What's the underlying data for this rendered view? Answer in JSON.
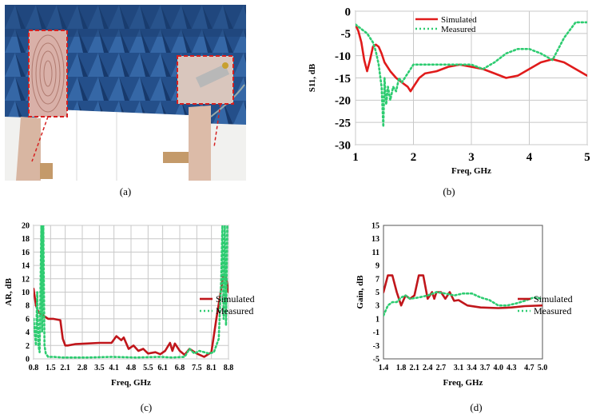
{
  "captions": {
    "a": "(a)",
    "b": "(b)",
    "c": "(c)",
    "d": "(d)"
  },
  "photo": {
    "description_colors": {
      "absorber": "#1f4e8c",
      "foam": "#f2f2f2",
      "board": "#d9b8a6",
      "inset_border": "#d62020"
    }
  },
  "chart_data": [
    {
      "id": "b",
      "type": "line",
      "xlabel": "Freq, GHz",
      "ylabel": "S11, dB",
      "xlim": [
        1,
        5
      ],
      "ylim": [
        -30,
        0
      ],
      "xticks": [
        "1",
        "2",
        "3",
        "4",
        "5"
      ],
      "yticks": [
        "0",
        "-5",
        "-10",
        "-15",
        "-20",
        "-25",
        "-30"
      ],
      "grid": true,
      "legend": "top-center",
      "series": [
        {
          "name": "Simulated",
          "color": "#e01b1b",
          "style": "solid",
          "x": [
            1.0,
            1.05,
            1.1,
            1.15,
            1.2,
            1.25,
            1.3,
            1.35,
            1.4,
            1.45,
            1.5,
            1.6,
            1.7,
            1.8,
            1.9,
            1.95,
            2.0,
            2.1,
            2.2,
            2.4,
            2.6,
            2.8,
            3.0,
            3.2,
            3.4,
            3.6,
            3.8,
            4.0,
            4.2,
            4.4,
            4.6,
            4.8,
            5.0
          ],
          "y": [
            -3,
            -4.5,
            -7,
            -11,
            -13.5,
            -11,
            -8,
            -7.5,
            -8,
            -9.5,
            -11.5,
            -13.5,
            -15,
            -16,
            -17,
            -18,
            -17,
            -15,
            -14,
            -13.5,
            -12.5,
            -12,
            -12.5,
            -13,
            -14,
            -15,
            -14.5,
            -13,
            -11.5,
            -10.8,
            -11.5,
            -13,
            -14.5
          ]
        },
        {
          "name": "Measured",
          "color": "#2ecc71",
          "style": "dotted",
          "x": [
            1.0,
            1.1,
            1.2,
            1.3,
            1.35,
            1.4,
            1.45,
            1.48,
            1.5,
            1.53,
            1.56,
            1.6,
            1.65,
            1.7,
            1.75,
            1.8,
            1.9,
            2.0,
            2.2,
            2.5,
            2.8,
            3.0,
            3.2,
            3.4,
            3.6,
            3.8,
            4.0,
            4.2,
            4.4,
            4.6,
            4.8,
            5.0
          ],
          "y": [
            -3,
            -4,
            -5,
            -7,
            -9,
            -12,
            -17,
            -26,
            -15,
            -21,
            -17,
            -20,
            -17,
            -18,
            -15,
            -16,
            -14,
            -12,
            -12,
            -12,
            -12,
            -12,
            -13,
            -11.5,
            -9.5,
            -8.5,
            -8.5,
            -9.5,
            -11,
            -6,
            -2.5,
            -2.5
          ]
        }
      ]
    },
    {
      "id": "c",
      "type": "line",
      "xlabel": "Freq, GHz",
      "ylabel": "AR, dB",
      "xlim": [
        0.8,
        8.8
      ],
      "ylim": [
        0,
        20
      ],
      "xticks": [
        "0.8",
        "1.5",
        "2.1",
        "2.8",
        "3.5",
        "4.1",
        "4.8",
        "5.5",
        "6.1",
        "6.8",
        "7.5",
        "8.1",
        "8.8"
      ],
      "yticks": [
        "0",
        "2",
        "4",
        "6",
        "8",
        "10",
        "12",
        "14",
        "16",
        "18",
        "20"
      ],
      "grid": true,
      "legend": "right",
      "series": [
        {
          "name": "Simulated",
          "color": "#c0161b",
          "style": "solid",
          "x": [
            0.8,
            0.9,
            1.0,
            1.2,
            1.4,
            1.6,
            1.9,
            2.0,
            2.1,
            2.2,
            2.5,
            3.0,
            3.5,
            4.0,
            4.2,
            4.4,
            4.5,
            4.7,
            4.9,
            5.1,
            5.3,
            5.5,
            5.8,
            6.0,
            6.2,
            6.4,
            6.5,
            6.6,
            6.8,
            7.0,
            7.2,
            7.5,
            7.8,
            8.1,
            8.3,
            8.5,
            8.6,
            8.7,
            8.8
          ],
          "y": [
            10.5,
            8,
            7,
            6.5,
            6,
            6,
            5.8,
            3,
            2,
            2,
            2.2,
            2.3,
            2.4,
            2.4,
            3.4,
            2.8,
            3.2,
            1.5,
            2,
            1.2,
            1.5,
            0.8,
            1,
            0.7,
            1.2,
            2.4,
            1.2,
            2.3,
            1.2,
            0.6,
            1.5,
            0.8,
            0.3,
            1,
            6,
            10.5,
            12.7,
            12.3,
            10
          ]
        },
        {
          "name": "Measured",
          "color": "#2ecc71",
          "style": "dotted",
          "x": [
            0.8,
            0.85,
            0.9,
            0.95,
            1.0,
            1.05,
            1.1,
            1.12,
            1.15,
            1.2,
            1.25,
            1.3,
            1.4,
            1.6,
            2.0,
            3.0,
            4.0,
            5.0,
            6.0,
            6.5,
            7.0,
            7.2,
            7.4,
            7.6,
            8.0,
            8.2,
            8.4,
            8.5,
            8.55,
            8.6,
            8.65,
            8.7,
            8.75,
            8.8
          ],
          "y": [
            6,
            4,
            2,
            10,
            2,
            1,
            15,
            20,
            4,
            20,
            2,
            0.8,
            0.3,
            0.3,
            0.2,
            0.2,
            0.3,
            0.2,
            0.3,
            0.2,
            0.3,
            1.5,
            0.8,
            1.2,
            0.8,
            1,
            3,
            12,
            20,
            6,
            20,
            5,
            20,
            20
          ]
        }
      ]
    },
    {
      "id": "d",
      "type": "line",
      "xlabel": "Freq, GHz",
      "ylabel": "Gain, dB",
      "xlim": [
        1.4,
        5.0
      ],
      "ylim": [
        -5,
        15
      ],
      "xticks": [
        "1.4",
        "1.8",
        "2.1",
        "2.4",
        "2.7",
        "3.1",
        "3.4",
        "3.7",
        "4.0",
        "4.3",
        "4.7",
        "5.0"
      ],
      "yticks": [
        "15",
        "13",
        "11",
        "9",
        "7",
        "5",
        "3",
        "1",
        "-1",
        "-3",
        "-5"
      ],
      "grid": false,
      "legend": "right",
      "series": [
        {
          "name": "Simulated",
          "color": "#c0161b",
          "style": "solid",
          "x": [
            1.4,
            1.5,
            1.6,
            1.7,
            1.8,
            1.9,
            2.0,
            2.1,
            2.2,
            2.3,
            2.4,
            2.5,
            2.55,
            2.6,
            2.7,
            2.8,
            2.9,
            3.0,
            3.1,
            3.3,
            3.6,
            4.0,
            4.3,
            4.6,
            5.0
          ],
          "y": [
            5,
            7.5,
            7.5,
            5,
            3,
            4.5,
            4,
            4.5,
            7.5,
            7.5,
            4,
            5,
            4,
            5,
            5,
            4,
            5,
            3.7,
            3.8,
            3,
            2.7,
            2.6,
            2.7,
            2.9,
            3
          ]
        },
        {
          "name": "Measured",
          "color": "#2ecc71",
          "style": "dotted",
          "x": [
            1.4,
            1.5,
            1.6,
            1.7,
            1.8,
            1.9,
            2.0,
            2.2,
            2.4,
            2.6,
            2.8,
            3.0,
            3.2,
            3.4,
            3.6,
            3.8,
            4.0,
            4.2,
            4.4,
            4.6,
            4.8,
            5.0
          ],
          "y": [
            1.5,
            3,
            3.5,
            3.5,
            4.2,
            4.5,
            4,
            4.2,
            4.5,
            5,
            4.8,
            4.5,
            4.8,
            4.8,
            4.2,
            3.8,
            3,
            3,
            3.3,
            3.7,
            4.2,
            4
          ]
        }
      ]
    }
  ]
}
